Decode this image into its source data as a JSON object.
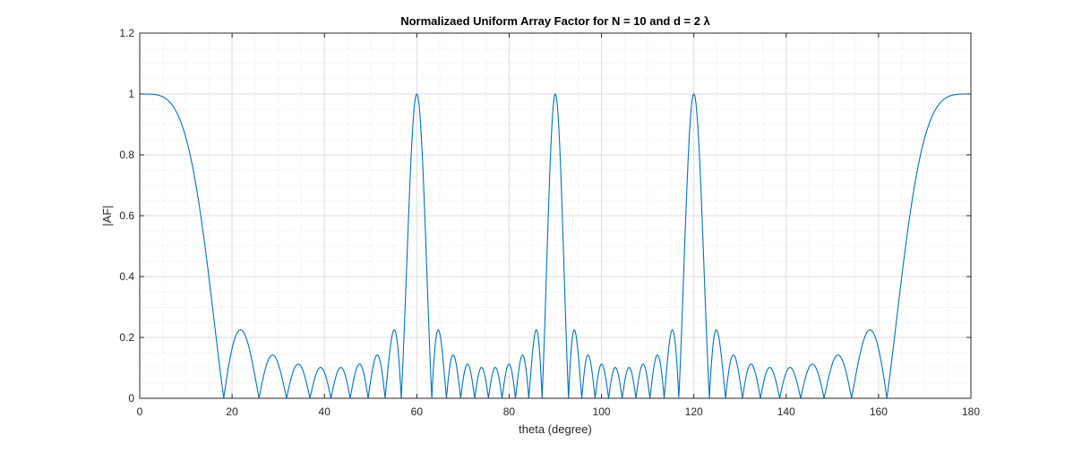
{
  "chart_data": {
    "type": "line",
    "title": "Normalizaed  Uniform Array Factor for N = 10 and d = 2 λ",
    "xlabel": "theta (degree)",
    "ylabel": "|AF|",
    "xlim": [
      0,
      180
    ],
    "ylim": [
      0,
      1.2
    ],
    "xticks": [
      0,
      20,
      40,
      60,
      80,
      100,
      120,
      140,
      160,
      180
    ],
    "xtick_labels": [
      "0",
      "20",
      "40",
      "60",
      "80",
      "100",
      "120",
      "140",
      "160",
      "180"
    ],
    "yticks": [
      0,
      0.2,
      0.4,
      0.6,
      0.8,
      1,
      1.2
    ],
    "ytick_labels": [
      "0",
      "0.2",
      "0.4",
      "0.6",
      "0.8",
      "1",
      "1.2"
    ],
    "grid": true,
    "minor_grid": true,
    "series": [
      {
        "name": "",
        "color": "#0072BD",
        "N": 10,
        "d_over_lambda": 2,
        "x": [
          0,
          10,
          18.2,
          21.9,
          25.8,
          28.4,
          31.8,
          34.4,
          36.9,
          39.4,
          41.4,
          43.4,
          45.6,
          48.0,
          50.2,
          52.8,
          55.3,
          57.4,
          60,
          62.5,
          64.9,
          67.2,
          70.0,
          72.8,
          75.5,
          78.5,
          81.4,
          84.3,
          86.3,
          87.4,
          90,
          92.6,
          96.5,
          100,
          103.5,
          107.2,
          110.0,
          112.8,
          115.5,
          117.5,
          120,
          122.5,
          125.3,
          127.8,
          131.3,
          135.0,
          138.6,
          141.4,
          144.4,
          146.6,
          151.6,
          158.2,
          161.8,
          170,
          180
        ],
        "y": [
          1,
          0.715,
          0,
          0.224,
          0,
          0.14,
          0,
          0.108,
          0,
          0.1,
          0,
          0.1,
          0,
          0.112,
          0,
          0.14,
          0,
          0.225,
          1,
          0,
          0.224,
          0,
          0.14,
          0,
          0.1,
          0,
          0.11,
          0,
          0.224,
          0.1,
          1,
          0.1,
          0.2,
          0.1,
          0.1,
          0.1,
          0.14,
          0,
          0.224,
          0,
          1,
          0,
          0.224,
          0,
          0.14,
          0,
          0.1,
          0,
          0.11,
          0,
          0.14,
          0.224,
          0,
          0.715,
          1
        ]
      }
    ]
  }
}
